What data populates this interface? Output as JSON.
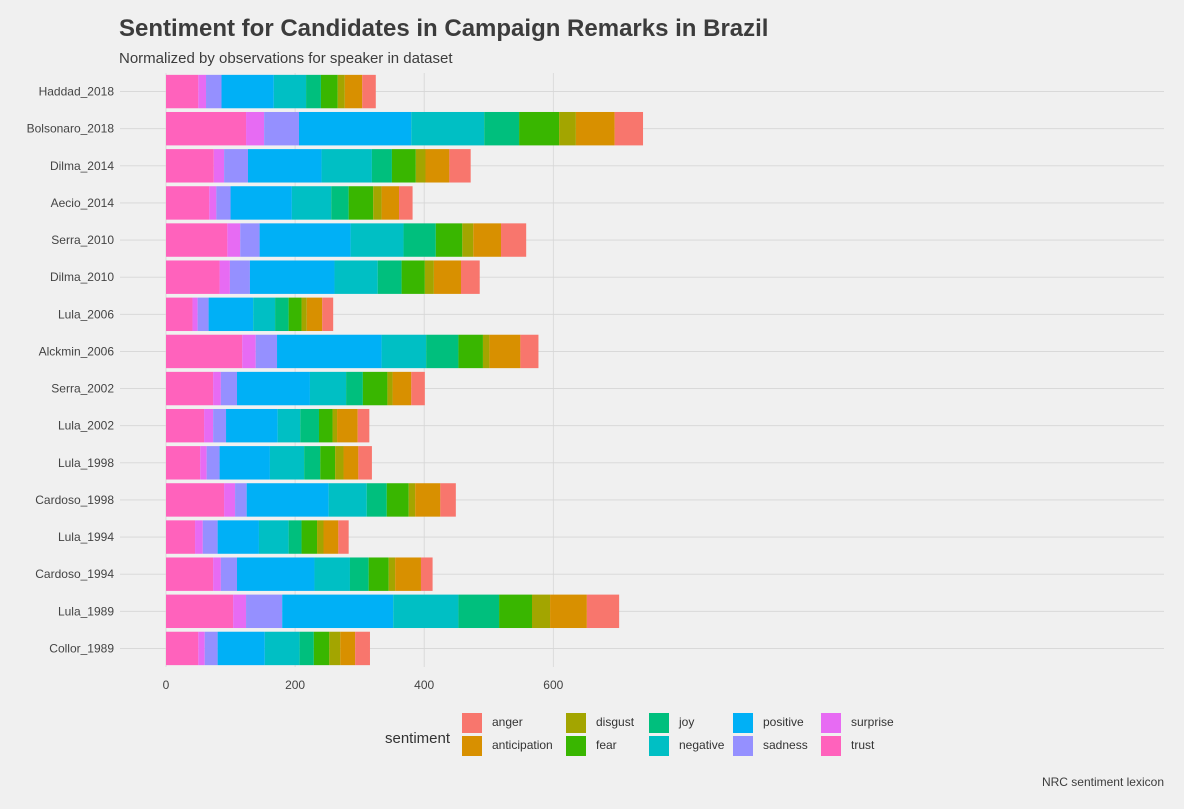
{
  "title": "Sentiment for Candidates in Campaign Remarks in Brazil",
  "subtitle": "Normalized by observations for speaker in dataset",
  "caption": "NRC sentiment lexicon",
  "chart_data": {
    "type": "bar",
    "orientation": "horizontal",
    "stacked": true,
    "title": "Sentiment for Candidates in Campaign Remarks in Brazil",
    "subtitle": "Normalized by observations for speaker in dataset",
    "xlabel": "",
    "ylabel": "",
    "xlim": [
      0,
      760
    ],
    "xticks": [
      0,
      200,
      400,
      600
    ],
    "grid": true,
    "legend_title": "sentiment",
    "legend_position": "bottom",
    "categories": [
      "Haddad_2018",
      "Bolsonaro_2018",
      "Dilma_2014",
      "Aecio_2014",
      "Serra_2010",
      "Dilma_2010",
      "Lula_2006",
      "Alckmin_2006",
      "Serra_2002",
      "Lula_2002",
      "Lula_1998",
      "Cardoso_1998",
      "Lula_1994",
      "Cardoso_1994",
      "Lula_1989",
      "Collor_1989"
    ],
    "stack_order": [
      "trust",
      "surprise",
      "sadness",
      "positive",
      "negative",
      "joy",
      "fear",
      "disgust",
      "anticipation",
      "anger"
    ],
    "series": [
      {
        "name": "anger",
        "color": "#F8766D",
        "values": [
          21,
          44,
          33,
          21,
          39,
          29,
          17,
          28,
          21,
          18,
          21,
          24,
          16,
          18,
          50,
          23
        ]
      },
      {
        "name": "anticipation",
        "color": "#D89000",
        "values": [
          27,
          60,
          37,
          27,
          43,
          42,
          24,
          48,
          29,
          32,
          23,
          39,
          23,
          40,
          57,
          23
        ]
      },
      {
        "name": "disgust",
        "color": "#A3A500",
        "values": [
          11,
          26,
          15,
          13,
          17,
          14,
          8,
          10,
          8,
          7,
          13,
          10,
          10,
          10,
          28,
          17
        ]
      },
      {
        "name": "fear",
        "color": "#39B600",
        "values": [
          26,
          62,
          37,
          38,
          41,
          36,
          20,
          38,
          38,
          21,
          23,
          34,
          24,
          31,
          51,
          24
        ]
      },
      {
        "name": "joy",
        "color": "#00BF7D",
        "values": [
          23,
          54,
          31,
          27,
          50,
          37,
          21,
          50,
          26,
          29,
          25,
          31,
          20,
          29,
          63,
          22
        ]
      },
      {
        "name": "negative",
        "color": "#00BFC4",
        "values": [
          50,
          113,
          78,
          61,
          82,
          67,
          34,
          69,
          56,
          35,
          53,
          59,
          46,
          55,
          101,
          54
        ]
      },
      {
        "name": "positive",
        "color": "#00B0F6",
        "values": [
          81,
          174,
          114,
          95,
          141,
          131,
          69,
          162,
          113,
          80,
          78,
          127,
          64,
          120,
          172,
          73
        ]
      },
      {
        "name": "sadness",
        "color": "#9590FF",
        "values": [
          24,
          54,
          37,
          22,
          30,
          31,
          17,
          33,
          25,
          20,
          20,
          18,
          23,
          25,
          56,
          20
        ]
      },
      {
        "name": "surprise",
        "color": "#E76BF3",
        "values": [
          12,
          28,
          16,
          11,
          20,
          16,
          8,
          21,
          12,
          14,
          10,
          17,
          12,
          12,
          20,
          10
        ]
      },
      {
        "name": "trust",
        "color": "#FF62BC",
        "values": [
          50,
          124,
          74,
          67,
          95,
          83,
          41,
          118,
          73,
          59,
          53,
          90,
          45,
          73,
          104,
          50
        ]
      }
    ]
  }
}
